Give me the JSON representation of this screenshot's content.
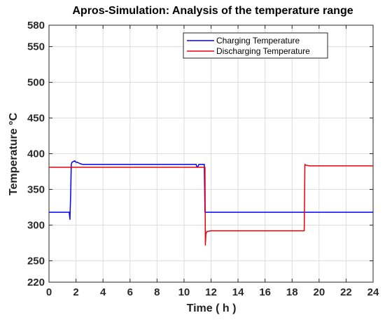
{
  "chart_data": {
    "type": "line",
    "title": "Apros-Simulation: Analysis of the temperature range",
    "xlabel": "Time ( h )",
    "ylabel": "Temperature  °C",
    "xlim": [
      0,
      24
    ],
    "ylim": [
      220,
      580
    ],
    "x_ticks": [
      0,
      2,
      4,
      6,
      8,
      10,
      12,
      14,
      16,
      18,
      20,
      22,
      24
    ],
    "y_ticks": [
      220,
      250,
      300,
      350,
      400,
      450,
      500,
      550,
      580
    ],
    "grid": true,
    "legend_position": "top-right",
    "series": [
      {
        "name": "Charging Temperature",
        "color": "#0000ff",
        "x": [
          0,
          1.5,
          1.55,
          1.6,
          1.65,
          1.7,
          1.9,
          2.0,
          2.1,
          2.3,
          2.5,
          3,
          5,
          7,
          9,
          10.9,
          10.95,
          11.0,
          11.1,
          11.2,
          11.5,
          11.55,
          11.6,
          12,
          14,
          16,
          18,
          20,
          22,
          24
        ],
        "y": [
          318,
          318,
          308,
          340,
          385,
          388,
          390,
          388,
          388,
          386,
          385,
          385,
          385,
          385,
          385,
          385,
          381,
          381,
          385,
          385,
          385,
          318,
          318,
          318,
          318,
          318,
          318,
          318,
          318,
          318
        ]
      },
      {
        "name": "Discharging Temperature",
        "color": "#e8000b",
        "x": [
          0,
          2,
          4,
          6,
          8,
          10,
          11.55,
          11.58,
          11.62,
          11.7,
          12,
          14,
          16,
          18,
          18.9,
          18.95,
          19.0,
          19.3,
          20,
          22,
          24
        ],
        "y": [
          381,
          381,
          381,
          381,
          381,
          381,
          381,
          272,
          288,
          291,
          292,
          292,
          292,
          292,
          292,
          385,
          384,
          383,
          383,
          383,
          383
        ]
      }
    ]
  }
}
